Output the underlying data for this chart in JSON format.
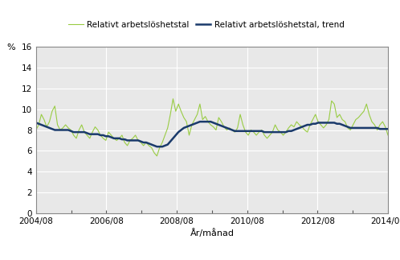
{
  "title": "",
  "ylabel": "%",
  "xlabel": "År/månad",
  "legend1": "Relativt arbetslöshetstal",
  "legend2": "Relativt arbetslöshetstal, trend",
  "line1_color": "#99cc44",
  "line2_color": "#1a3a6b",
  "ylim": [
    0,
    16
  ],
  "yticks": [
    0,
    2,
    4,
    6,
    8,
    10,
    12,
    14,
    16
  ],
  "xtick_labels": [
    "2004/08",
    "2006/08",
    "2008/08",
    "2010/08",
    "2012/08",
    "2014/08"
  ],
  "background_color": "#ffffff",
  "plot_bg_color": "#e8e8e8",
  "grid_color": "#ffffff",
  "raw_data": [
    8.0,
    8.5,
    9.5,
    9.0,
    8.3,
    8.8,
    9.8,
    10.3,
    8.5,
    8.0,
    8.2,
    8.5,
    8.2,
    8.0,
    7.5,
    7.2,
    8.0,
    8.5,
    7.8,
    7.5,
    7.2,
    7.8,
    8.3,
    8.0,
    7.5,
    7.2,
    7.0,
    7.8,
    7.5,
    7.2,
    7.0,
    7.2,
    7.5,
    6.8,
    6.5,
    7.0,
    7.2,
    7.5,
    7.0,
    6.8,
    6.5,
    6.8,
    6.5,
    6.3,
    5.8,
    5.5,
    6.3,
    6.8,
    7.5,
    8.2,
    9.5,
    11.0,
    9.8,
    10.5,
    9.8,
    9.2,
    8.8,
    7.5,
    8.5,
    9.0,
    9.5,
    10.5,
    9.0,
    9.3,
    8.8,
    8.5,
    8.3,
    8.0,
    9.2,
    8.8,
    8.3,
    8.0,
    8.2,
    8.0,
    7.8,
    8.2,
    9.5,
    8.5,
    7.8,
    7.5,
    8.0,
    7.8,
    7.5,
    7.8,
    8.0,
    7.5,
    7.2,
    7.5,
    7.8,
    8.5,
    8.0,
    7.8,
    7.5,
    7.8,
    8.2,
    8.5,
    8.3,
    8.8,
    8.5,
    8.3,
    8.0,
    7.8,
    8.5,
    9.0,
    9.5,
    8.8,
    8.5,
    8.2,
    8.5,
    9.0,
    10.8,
    10.5,
    9.2,
    9.5,
    9.0,
    8.8,
    8.2,
    8.0,
    8.5,
    9.0,
    9.2,
    9.5,
    9.8,
    10.5,
    9.5,
    8.8,
    8.5,
    8.0,
    8.5,
    8.8,
    8.3,
    7.5
  ],
  "trend_data": [
    8.7,
    8.6,
    8.5,
    8.4,
    8.3,
    8.2,
    8.1,
    8.0,
    8.0,
    8.0,
    8.0,
    8.0,
    8.0,
    7.9,
    7.8,
    7.8,
    7.8,
    7.8,
    7.8,
    7.7,
    7.6,
    7.6,
    7.6,
    7.6,
    7.5,
    7.5,
    7.4,
    7.4,
    7.3,
    7.2,
    7.2,
    7.2,
    7.1,
    7.1,
    7.0,
    7.0,
    7.0,
    7.0,
    7.0,
    6.9,
    6.8,
    6.8,
    6.7,
    6.6,
    6.5,
    6.4,
    6.4,
    6.4,
    6.5,
    6.6,
    6.9,
    7.2,
    7.5,
    7.8,
    8.0,
    8.2,
    8.3,
    8.4,
    8.5,
    8.6,
    8.7,
    8.8,
    8.8,
    8.8,
    8.8,
    8.8,
    8.7,
    8.6,
    8.5,
    8.4,
    8.3,
    8.2,
    8.1,
    8.0,
    7.9,
    7.9,
    7.9,
    7.9,
    7.9,
    7.9,
    7.9,
    7.9,
    7.9,
    7.9,
    7.9,
    7.8,
    7.8,
    7.8,
    7.8,
    7.8,
    7.8,
    7.8,
    7.8,
    7.8,
    7.9,
    7.9,
    8.0,
    8.1,
    8.2,
    8.3,
    8.4,
    8.5,
    8.5,
    8.6,
    8.6,
    8.7,
    8.7,
    8.7,
    8.7,
    8.7,
    8.7,
    8.7,
    8.6,
    8.6,
    8.5,
    8.4,
    8.3,
    8.2,
    8.2,
    8.2,
    8.2,
    8.2,
    8.2,
    8.2,
    8.2,
    8.2,
    8.2,
    8.2,
    8.1,
    8.1,
    8.1,
    8.1
  ]
}
